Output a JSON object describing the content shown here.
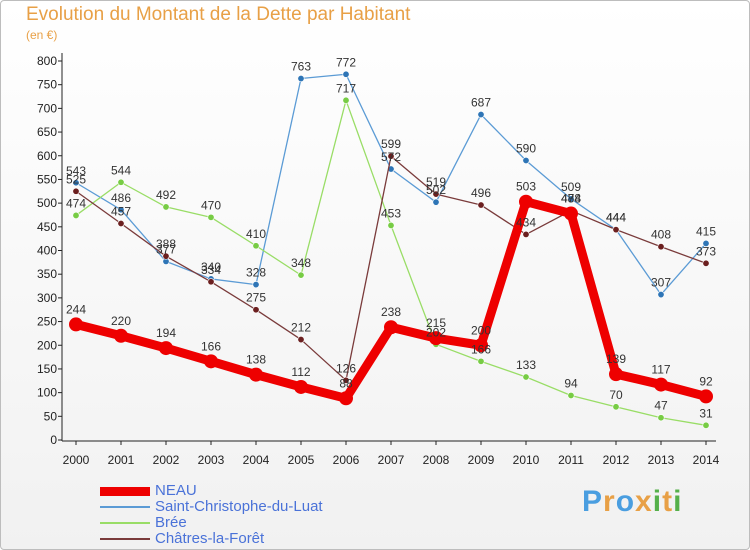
{
  "title": "Evolution du Montant de la Dette par Habitant",
  "subtitle": "(en €)",
  "logo": {
    "text": "Proxiti",
    "colors": [
      "#4a9ee0",
      "#e8a046",
      "#4a9ee0",
      "#e8a046",
      "#55b04a",
      "#e8a046",
      "#55b04a"
    ]
  },
  "chart_data": {
    "type": "line",
    "title": "Evolution du Montant de la Dette par Habitant",
    "ylabel": "(en €)",
    "xlabel": "",
    "ylim": [
      0,
      800
    ],
    "yticks": [
      0,
      50,
      100,
      150,
      200,
      250,
      300,
      350,
      400,
      450,
      500,
      550,
      600,
      650,
      700,
      750,
      800
    ],
    "x": [
      "2000",
      "2001",
      "2002",
      "2003",
      "2004",
      "2005",
      "2006",
      "2007",
      "2008",
      "2009",
      "2010",
      "2011",
      "2012",
      "2013",
      "2014"
    ],
    "grid": false,
    "legend_position": "bottom-left",
    "series": [
      {
        "name": "Saint-Christophe-du-Luat",
        "color": "#5b9bd5",
        "marker": "#2e75b6",
        "values": [
          543,
          486,
          377,
          340,
          328,
          763,
          772,
          572,
          502,
          687,
          590,
          509,
          444,
          307,
          415
        ],
        "labels": [
          "543",
          "486",
          "377",
          "340",
          "328",
          "763",
          "772",
          "572",
          "502",
          "687",
          "590",
          "509",
          "444",
          "307",
          "415"
        ]
      },
      {
        "name": "Brée",
        "color": "#99dd66",
        "marker": "#77cc44",
        "values": [
          474,
          544,
          492,
          470,
          410,
          348,
          717,
          453,
          202,
          166,
          133,
          94,
          70,
          47,
          31
        ],
        "labels": [
          "474",
          "544",
          "492",
          "470",
          "410",
          "348",
          "717",
          "453",
          "202",
          "166",
          "133",
          "94",
          "70",
          "47",
          "31"
        ]
      },
      {
        "name": "Châtres-la-Forêt",
        "color": "#7a3b3b",
        "marker": "#6b1f1f",
        "values": [
          525,
          457,
          388,
          334,
          275,
          212,
          126,
          599,
          519,
          496,
          434,
          484,
          444,
          408,
          373
        ],
        "labels": [
          "525",
          "457",
          "388",
          "334",
          "275",
          "212",
          "126",
          "599",
          "519",
          "496",
          "434",
          "484",
          "444",
          "408",
          "373"
        ]
      },
      {
        "name": "NEAU",
        "color": "#ee0000",
        "marker": "#ee0000",
        "values": [
          244,
          220,
          194,
          166,
          138,
          112,
          88,
          238,
          215,
          200,
          503,
          478,
          139,
          117,
          92
        ],
        "labels": [
          "244",
          "220",
          "194",
          "166",
          "138",
          "112",
          "88",
          "238",
          "215",
          "200",
          "503",
          "478",
          "139",
          "117",
          "92"
        ]
      }
    ],
    "legend": [
      "NEAU",
      "Saint-Christophe-du-Luat",
      "Brée",
      "Châtres-la-Forêt"
    ]
  }
}
